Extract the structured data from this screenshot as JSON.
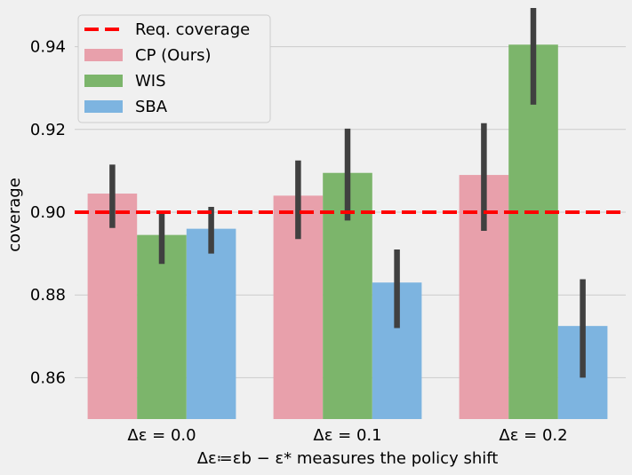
{
  "chart_data": {
    "type": "bar",
    "title": "",
    "xlabel": "Δε≔εb − ε* measures the policy shift",
    "ylabel": "coverage",
    "ylim": [
      0.85,
      0.95
    ],
    "yticks": [
      0.86,
      0.88,
      0.9,
      0.92,
      0.94
    ],
    "ytick_labels": [
      "0.86",
      "0.88",
      "0.90",
      "0.92",
      "0.94"
    ],
    "grid": "horizontal",
    "legend_position": "top-left",
    "categories": [
      "Δε = 0.0",
      "Δε = 0.1",
      "Δε = 0.2"
    ],
    "series": [
      {
        "name": "CP (Ours)",
        "color": "#e8a0ab",
        "values": [
          0.9045,
          0.904,
          0.909
        ],
        "err_low": [
          0.8962,
          0.8935,
          0.8955
        ],
        "err_high": [
          0.9115,
          0.9125,
          0.9215
        ]
      },
      {
        "name": "WIS",
        "color": "#7cb56b",
        "values": [
          0.8945,
          0.9095,
          0.9405
        ],
        "err_low": [
          0.8875,
          0.898,
          0.926
        ],
        "err_high": [
          0.9,
          0.9202,
          0.95
        ]
      },
      {
        "name": "SBA",
        "color": "#7db4e0",
        "values": [
          0.896,
          0.883,
          0.8725
        ],
        "err_low": [
          0.89,
          0.872,
          0.86
        ],
        "err_high": [
          0.9013,
          0.891,
          0.8838
        ]
      }
    ],
    "reference_line": {
      "name": "Req. coverage",
      "value": 0.9,
      "color": "#ff0000"
    },
    "errorbar_color": "#404040"
  }
}
